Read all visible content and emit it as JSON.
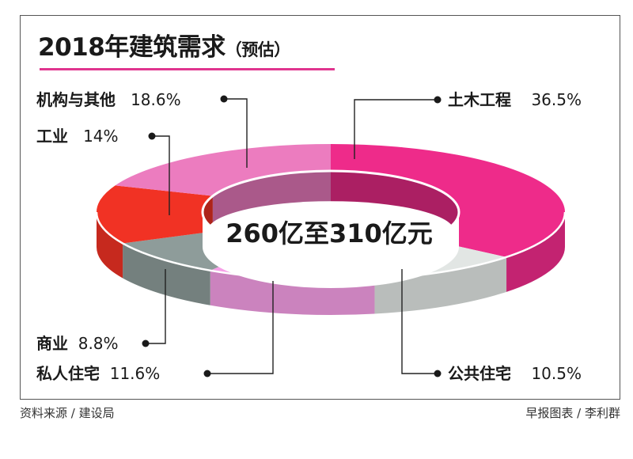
{
  "header": {
    "title": "2018年建筑需求",
    "subtitle": "（预估）"
  },
  "center_label": "260亿至310亿元",
  "footer": {
    "source": "资料来源 / 建设局",
    "credit": "早报图表 / 李利群"
  },
  "colors": {
    "title_rule": "#e0358f",
    "civil": "#ee2b8a",
    "institutional": "#ec7cbf",
    "industrial": "#f13224",
    "commercial": "#8e9c9a",
    "private_housing": "#f7a0e8",
    "public_housing": "#e2e6e4"
  },
  "labels": {
    "institutional": {
      "name": "机构与其他",
      "pct": "18.6%"
    },
    "industrial": {
      "name": "工业",
      "pct": "14%"
    },
    "civil": {
      "name": "土木工程",
      "pct": "36.5%"
    },
    "commercial": {
      "name": "商业",
      "pct": "8.8%"
    },
    "private_housing": {
      "name": "私人住宅",
      "pct": "11.6%"
    },
    "public_housing": {
      "name": "公共住宅",
      "pct": "10.5%"
    }
  },
  "chart_data": {
    "type": "pie",
    "variant": "3d-donut",
    "title": "2018年建筑需求（预估）",
    "center_annotation": "260亿至310亿元",
    "categories": [
      "土木工程",
      "公共住宅",
      "私人住宅",
      "商业",
      "工业",
      "机构与其他"
    ],
    "values": [
      36.5,
      10.5,
      11.6,
      8.8,
      14,
      18.6
    ],
    "unit": "%",
    "colors": [
      "#ee2b8a",
      "#e2e6e4",
      "#f7a0e8",
      "#8e9c9a",
      "#f13224",
      "#ec7cbf"
    ],
    "legend": "callout labels with leader lines",
    "source": "资料来源 / 建设局",
    "credit": "早报图表 / 李利群"
  }
}
